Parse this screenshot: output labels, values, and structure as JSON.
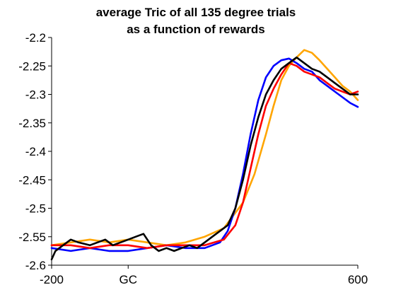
{
  "chart_data": {
    "type": "line",
    "title_lines": [
      "average Tric of all 135 degree trials",
      "as a function of rewards"
    ],
    "xlabel": "",
    "ylabel": "",
    "xlim": [
      -200,
      600
    ],
    "ylim": [
      -2.6,
      -2.2
    ],
    "xticks": [
      {
        "value": -200,
        "label": "-200"
      },
      {
        "value": 0,
        "label": "GC"
      },
      {
        "value": 600,
        "label": "600"
      }
    ],
    "yticks": [
      {
        "value": -2.2,
        "label": "-2.2"
      },
      {
        "value": -2.25,
        "label": "-2.25"
      },
      {
        "value": -2.3,
        "label": "-2.3"
      },
      {
        "value": -2.35,
        "label": "-2.35"
      },
      {
        "value": -2.4,
        "label": "-2.4"
      },
      {
        "value": -2.45,
        "label": "-2.45"
      },
      {
        "value": -2.5,
        "label": "-2.5"
      },
      {
        "value": -2.55,
        "label": "-2.55"
      },
      {
        "value": -2.6,
        "label": "-2.6"
      }
    ],
    "grid": false,
    "legend": "none",
    "series": [
      {
        "color": "#FFA500",
        "x": [
          -200,
          -150,
          -100,
          -50,
          0,
          50,
          100,
          150,
          200,
          250,
          300,
          330,
          360,
          380,
          400,
          420,
          440,
          460,
          480,
          500,
          520,
          540,
          560,
          580,
          600
        ],
        "y": [
          -2.565,
          -2.56,
          -2.555,
          -2.56,
          -2.555,
          -2.56,
          -2.565,
          -2.56,
          -2.55,
          -2.535,
          -2.49,
          -2.44,
          -2.37,
          -2.32,
          -2.275,
          -2.25,
          -2.235,
          -2.222,
          -2.227,
          -2.24,
          -2.255,
          -2.27,
          -2.285,
          -2.295,
          -2.31
        ]
      },
      {
        "color": "#0000FF",
        "x": [
          -200,
          -150,
          -100,
          -50,
          0,
          50,
          100,
          150,
          200,
          240,
          260,
          280,
          300,
          320,
          340,
          360,
          380,
          400,
          420,
          440,
          460,
          480,
          500,
          520,
          540,
          560,
          580,
          600
        ],
        "y": [
          -2.57,
          -2.575,
          -2.57,
          -2.575,
          -2.575,
          -2.57,
          -2.565,
          -2.57,
          -2.57,
          -2.56,
          -2.54,
          -2.5,
          -2.44,
          -2.37,
          -2.31,
          -2.27,
          -2.25,
          -2.24,
          -2.237,
          -2.245,
          -2.255,
          -2.26,
          -2.275,
          -2.285,
          -2.295,
          -2.305,
          -2.315,
          -2.322
        ]
      },
      {
        "color": "#FF0000",
        "x": [
          -200,
          -150,
          -100,
          -50,
          0,
          50,
          100,
          150,
          200,
          250,
          280,
          300,
          320,
          340,
          360,
          380,
          400,
          420,
          440,
          460,
          480,
          500,
          520,
          540,
          560,
          580,
          600
        ],
        "y": [
          -2.565,
          -2.565,
          -2.57,
          -2.565,
          -2.565,
          -2.57,
          -2.565,
          -2.565,
          -2.565,
          -2.555,
          -2.53,
          -2.49,
          -2.43,
          -2.37,
          -2.32,
          -2.29,
          -2.265,
          -2.245,
          -2.25,
          -2.26,
          -2.265,
          -2.27,
          -2.28,
          -2.29,
          -2.295,
          -2.3,
          -2.295
        ]
      },
      {
        "color": "#000000",
        "x": [
          -200,
          -190,
          -170,
          -150,
          -130,
          -100,
          -80,
          -60,
          -40,
          -20,
          0,
          20,
          40,
          60,
          80,
          100,
          120,
          140,
          160,
          180,
          200,
          220,
          240,
          260,
          280,
          300,
          320,
          340,
          360,
          380,
          400,
          420,
          440,
          460,
          480,
          500,
          520,
          540,
          560,
          580,
          600
        ],
        "y": [
          -2.59,
          -2.575,
          -2.565,
          -2.555,
          -2.56,
          -2.565,
          -2.56,
          -2.555,
          -2.565,
          -2.56,
          -2.555,
          -2.55,
          -2.545,
          -2.565,
          -2.575,
          -2.57,
          -2.575,
          -2.57,
          -2.565,
          -2.57,
          -2.56,
          -2.55,
          -2.54,
          -2.53,
          -2.5,
          -2.45,
          -2.39,
          -2.34,
          -2.3,
          -2.275,
          -2.255,
          -2.245,
          -2.235,
          -2.245,
          -2.255,
          -2.26,
          -2.27,
          -2.28,
          -2.29,
          -2.3,
          -2.3
        ]
      }
    ]
  }
}
